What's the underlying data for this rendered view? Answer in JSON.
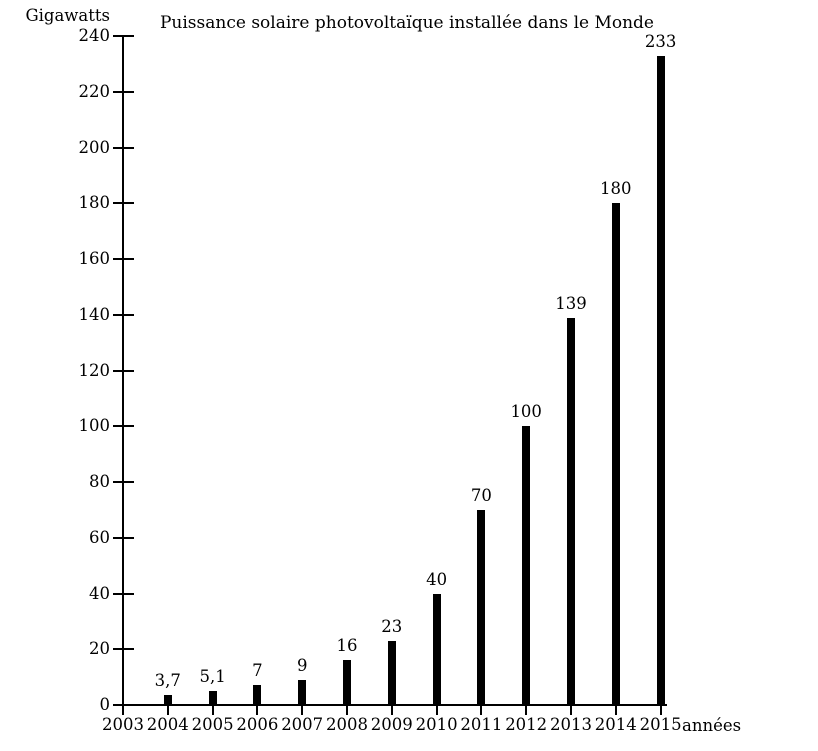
{
  "page": {
    "background_color": "#ffffff",
    "ink_color": "#000000"
  },
  "chart_data": {
    "type": "bar",
    "title": "Puissance solaire photovoltaïque installée dans le Monde",
    "ylabel": "Gigawatts",
    "xlabel": "années",
    "categories": [
      "2003",
      "2004",
      "2005",
      "2006",
      "2007",
      "2008",
      "2009",
      "2010",
      "2011",
      "2012",
      "2013",
      "2014",
      "2015"
    ],
    "values": [
      null,
      3.7,
      5.1,
      7,
      9,
      16,
      23,
      40,
      70,
      100,
      139,
      180,
      233
    ],
    "bar_labels": [
      null,
      "3,7",
      "5,1",
      "7",
      "9",
      "16",
      "23",
      "40",
      "70",
      "100",
      "139",
      "180",
      "233"
    ],
    "ylim": [
      0,
      240
    ],
    "ytick_step": 20,
    "ytick_labels": [
      "0",
      "20",
      "40",
      "60",
      "80",
      "100",
      "120",
      "140",
      "160",
      "180",
      "200",
      "220",
      "240"
    ],
    "grid": false,
    "legend": null,
    "bar_color": "#000000",
    "axis_color": "#000000"
  }
}
